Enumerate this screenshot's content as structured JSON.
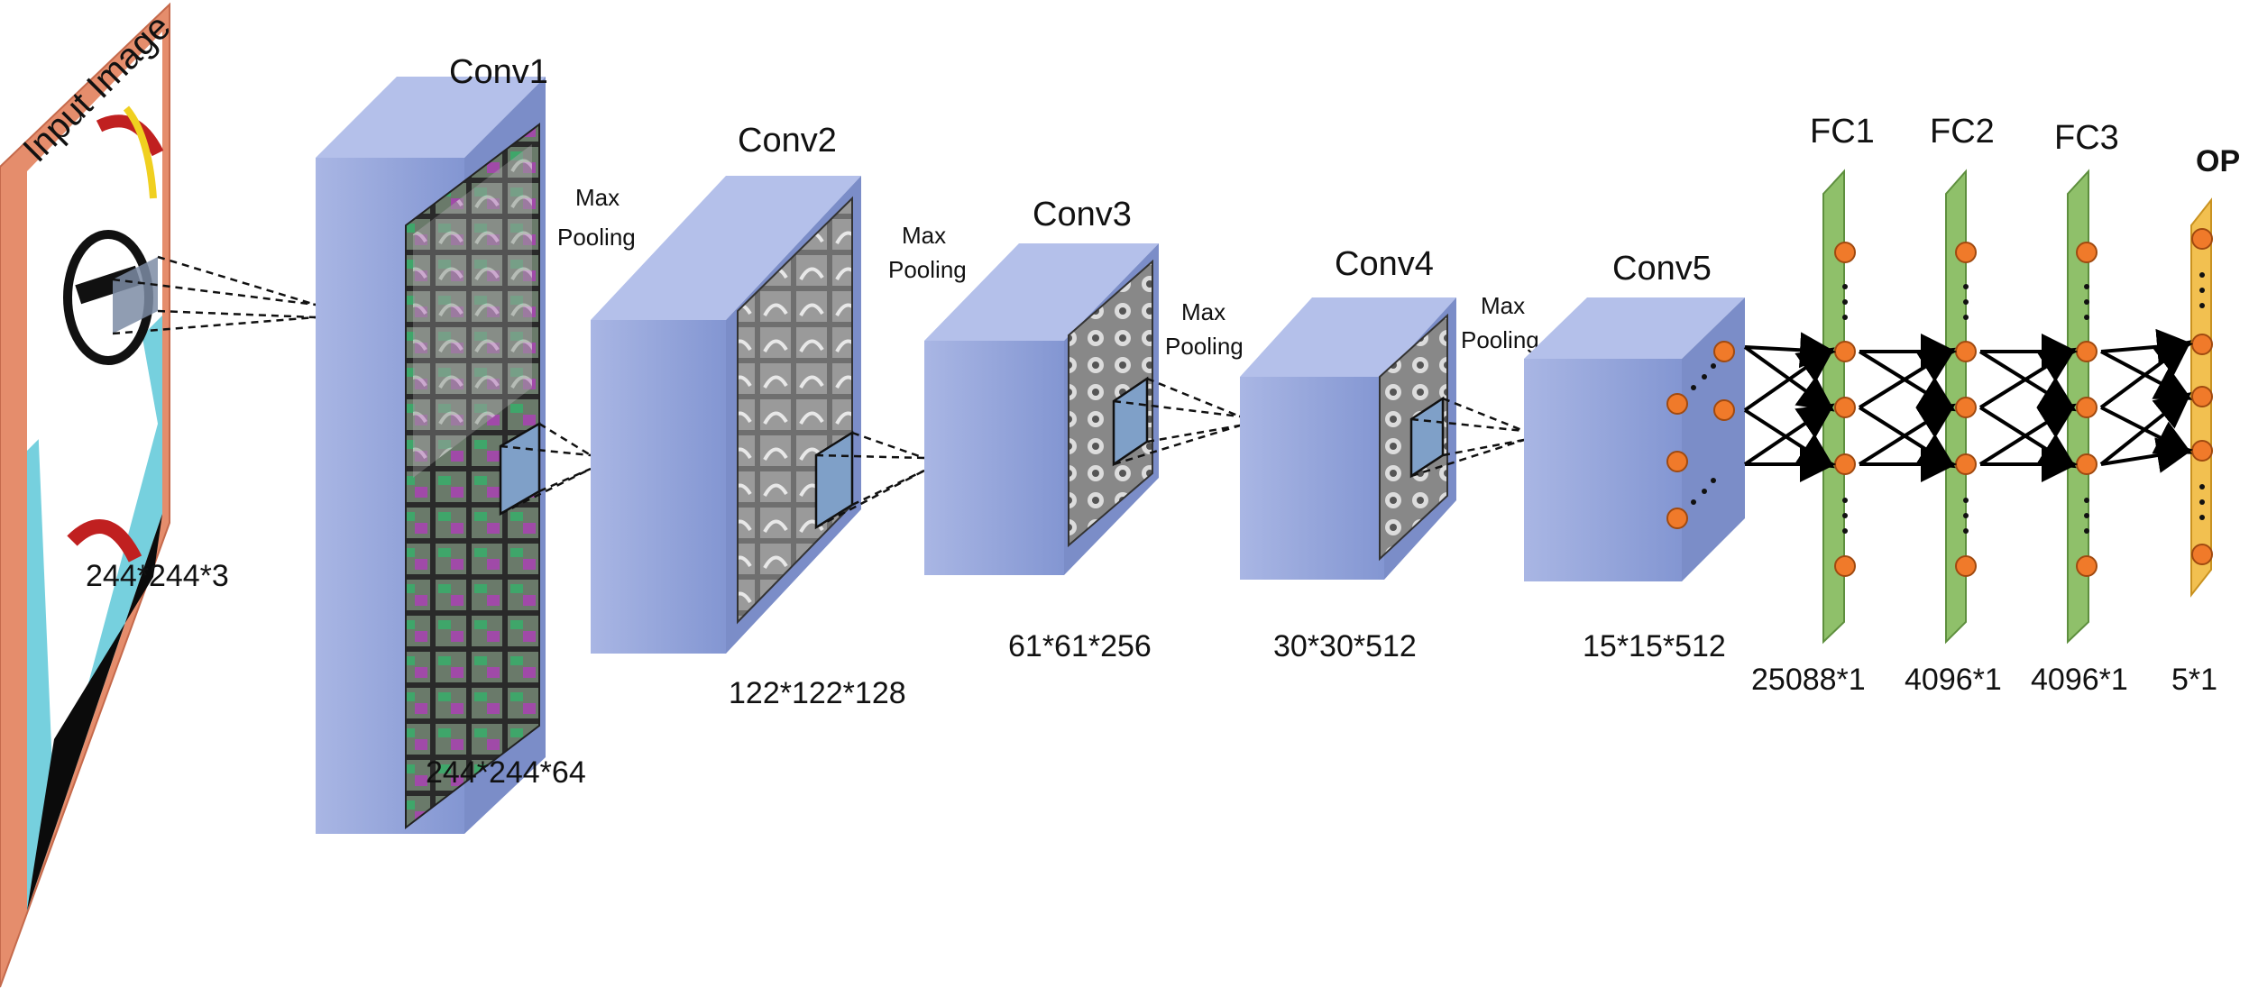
{
  "input": {
    "label": "Input Image",
    "dims": "244*244*3"
  },
  "conv_layers": [
    {
      "name": "Conv1",
      "dims": "244*244*64"
    },
    {
      "name": "Conv2",
      "dims": "122*122*128"
    },
    {
      "name": "Conv3",
      "dims": "61*61*256"
    },
    {
      "name": "Conv4",
      "dims": "30*30*512"
    },
    {
      "name": "Conv5",
      "dims": "15*15*512"
    }
  ],
  "pooling_label_line1": "Max",
  "pooling_label_line2": "Pooling",
  "fc_layers": [
    {
      "name": "FC1",
      "dims": "4096*1"
    },
    {
      "name": "FC2",
      "dims": "4096*1"
    },
    {
      "name": "FC3",
      "dims": "5*1"
    }
  ],
  "flatten_dims": "25088*1",
  "output": {
    "label": "OP"
  },
  "colors": {
    "conv_block": "#8e9fd6",
    "input_frame": "#e9967a",
    "fc_bar": "#8fc06a",
    "op_bar": "#f2c050",
    "neuron": "#f07a2a"
  }
}
